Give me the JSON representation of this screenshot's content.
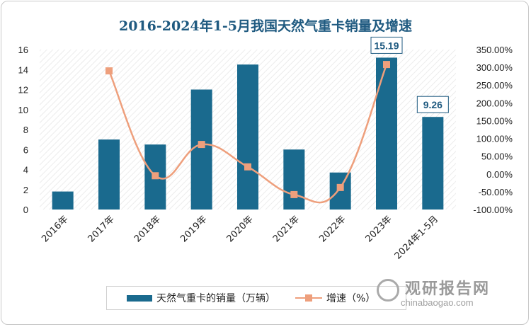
{
  "chart_data": {
    "type": "bar",
    "title": "2016-2024年1-5月我国天然气重卡销量及增速",
    "categories": [
      "2016年",
      "2017年",
      "2018年",
      "2019年",
      "2020年",
      "2021年",
      "2022年",
      "2023年",
      "2024年1-5月"
    ],
    "series": [
      {
        "name": "天然气重卡的销量（万辆）",
        "type": "bar",
        "axis": "left",
        "color": "#1a6a8e",
        "values": [
          1.8,
          7.0,
          6.5,
          12.0,
          14.5,
          6.0,
          3.7,
          15.19,
          9.26
        ]
      },
      {
        "name": "增速（%）",
        "type": "line",
        "axis": "right",
        "color": "#ee9f7c",
        "values": [
          null,
          290,
          -5,
          83,
          20,
          -58,
          -38,
          308,
          null
        ]
      }
    ],
    "data_labels": [
      {
        "category": "2023年",
        "text": "15.19"
      },
      {
        "category": "2024年1-5月",
        "text": "9.26"
      }
    ],
    "y_left": {
      "min": 0,
      "max": 16,
      "ticks": [
        "0",
        "2",
        "4",
        "6",
        "8",
        "10",
        "12",
        "14",
        "16"
      ]
    },
    "y_right": {
      "min": -100,
      "max": 350,
      "ticks": [
        "-100.00%",
        "-50.00%",
        "0.00%",
        "50.00%",
        "100.00%",
        "150.00%",
        "200.00%",
        "250.00%",
        "300.00%",
        "350.00%"
      ]
    },
    "legend": "bottom",
    "grid": false
  },
  "watermark": {
    "brand": "观研报告网",
    "url": "chinabaogao.com"
  }
}
